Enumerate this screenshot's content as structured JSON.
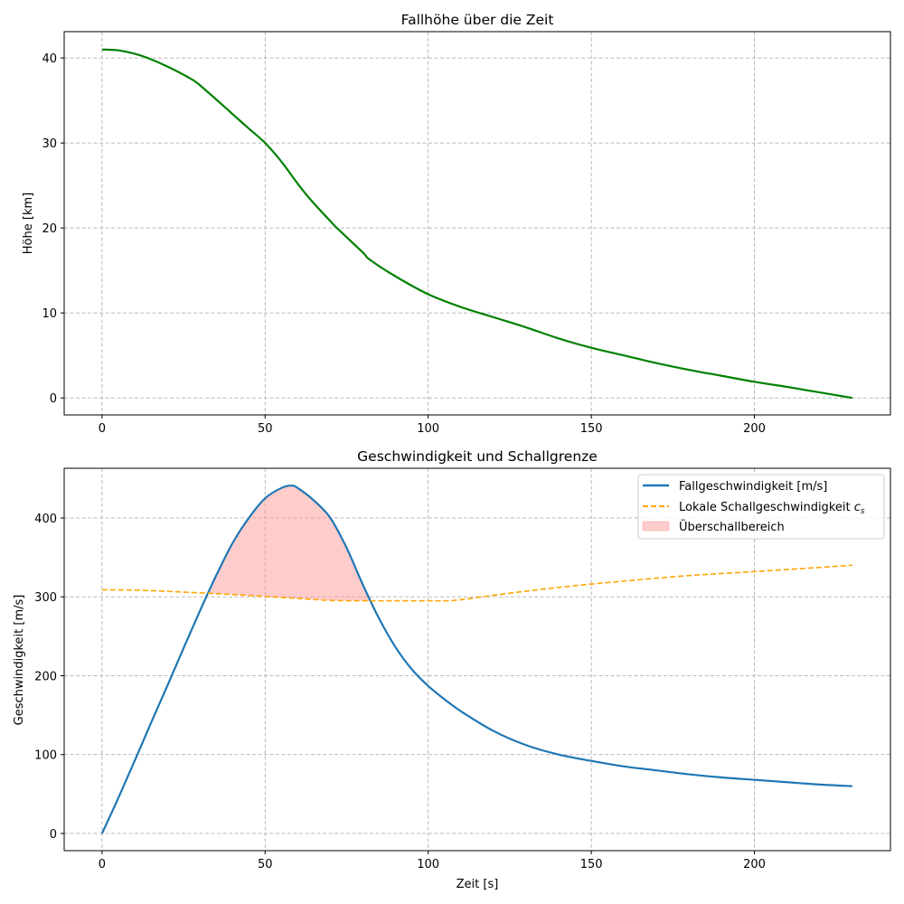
{
  "chart_data": [
    {
      "type": "line",
      "title": "Fallhöhe über die Zeit",
      "xlabel": "",
      "ylabel": "Höhe [km]",
      "xlim": [
        -11.6,
        241.7
      ],
      "ylim": [
        -2.0,
        43.1
      ],
      "xticks": [
        0,
        50,
        100,
        150,
        200
      ],
      "yticks": [
        0,
        10,
        20,
        30,
        40
      ],
      "grid": true,
      "series": [
        {
          "name": "Höhe",
          "color": "#008000",
          "x": [
            0,
            5,
            10,
            14,
            20,
            27,
            30,
            38,
            40,
            45,
            50,
            55,
            60,
            64,
            70,
            72,
            80,
            82,
            90,
            100,
            110,
            120,
            130,
            140,
            150,
            160,
            170,
            180,
            190,
            200,
            210,
            220,
            230
          ],
          "y": [
            41,
            40.9,
            40.5,
            40,
            39,
            37.6,
            36.8,
            34.1,
            33.4,
            31.7,
            30,
            27.8,
            25.2,
            23.3,
            20.8,
            20,
            17.1,
            16.3,
            14.3,
            12.2,
            10.7,
            9.5,
            8.3,
            7,
            5.9,
            5,
            4.1,
            3.3,
            2.6,
            1.9,
            1.3,
            0.65,
            0
          ]
        }
      ]
    },
    {
      "type": "line",
      "title": "Geschwindigkeit und Schallgrenze",
      "xlabel": "Zeit [s]",
      "ylabel": "Geschwindigkeit [m/s]",
      "xlim": [
        -11.6,
        241.7
      ],
      "ylim": [
        -21.8,
        463
      ],
      "xticks": [
        0,
        50,
        100,
        150,
        200
      ],
      "yticks": [
        0,
        100,
        200,
        300,
        400
      ],
      "grid": true,
      "legend_position": "top-right",
      "series": [
        {
          "name": "Fallgeschwindigkeit [m/s]",
          "color": "#1f77b4",
          "style": "solid",
          "x": [
            0,
            5,
            10,
            15,
            20,
            25,
            30,
            35,
            40,
            45,
            50,
            55,
            58,
            60,
            65,
            70,
            75,
            80,
            85,
            90,
            95,
            100,
            105,
            110,
            120,
            130,
            140,
            150,
            160,
            170,
            180,
            190,
            200,
            210,
            220,
            230
          ],
          "y": [
            0,
            45,
            92,
            140,
            187,
            235,
            282,
            327,
            368,
            400,
            425,
            438,
            441,
            438,
            422,
            400,
            362,
            315,
            272,
            236,
            208,
            187,
            170,
            155,
            130,
            112,
            100,
            92,
            85,
            80,
            75,
            71,
            68,
            65,
            62,
            60
          ]
        },
        {
          "name": "Lokale Schallgeschwindigkeit",
          "name_sub": "s",
          "name_var": "c",
          "color": "#ffa500",
          "style": "dashed",
          "x": [
            0,
            10,
            20,
            30,
            40,
            50,
            60,
            70,
            80,
            90,
            100,
            108,
            120,
            140,
            160,
            180,
            200,
            230
          ],
          "y": [
            309,
            308.5,
            307,
            305,
            303,
            300.5,
            298,
            295.5,
            295,
            295,
            295,
            295.5,
            302,
            312,
            320,
            327,
            332,
            340
          ]
        }
      ],
      "fill": {
        "name": "Überschallbereich",
        "color": "#ff9999",
        "opacity": 0.5,
        "between": [
          "Fallgeschwindigkeit [m/s]",
          "Lokale Schallgeschwindigkeit"
        ],
        "where": "v > c_s"
      }
    }
  ]
}
